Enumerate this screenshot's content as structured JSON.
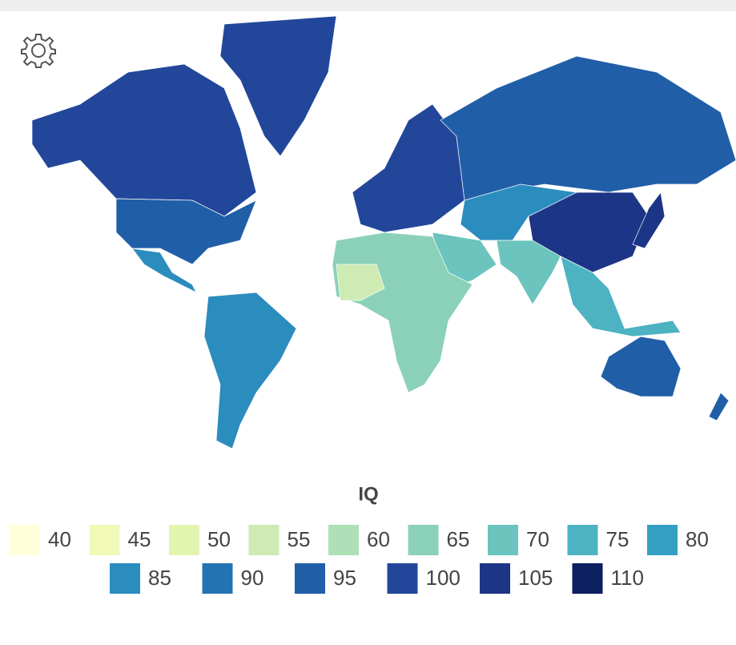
{
  "legend": {
    "title": "IQ",
    "items": [
      {
        "value": 40,
        "color": "#ffffd9"
      },
      {
        "value": 45,
        "color": "#f1f9b9"
      },
      {
        "value": 50,
        "color": "#e3f4b1"
      },
      {
        "value": 55,
        "color": "#cdebb3"
      },
      {
        "value": 60,
        "color": "#aedfb6"
      },
      {
        "value": 65,
        "color": "#8bd1b9"
      },
      {
        "value": 70,
        "color": "#6bc4bd"
      },
      {
        "value": 75,
        "color": "#4db3c2"
      },
      {
        "value": 80,
        "color": "#33a0c2"
      },
      {
        "value": 85,
        "color": "#2b8cbe"
      },
      {
        "value": 90,
        "color": "#2473b3"
      },
      {
        "value": 95,
        "color": "#215ea8"
      },
      {
        "value": 100,
        "color": "#22479a"
      },
      {
        "value": 105,
        "color": "#1d3586"
      },
      {
        "value": 110,
        "color": "#0c1f5e"
      }
    ]
  }
}
